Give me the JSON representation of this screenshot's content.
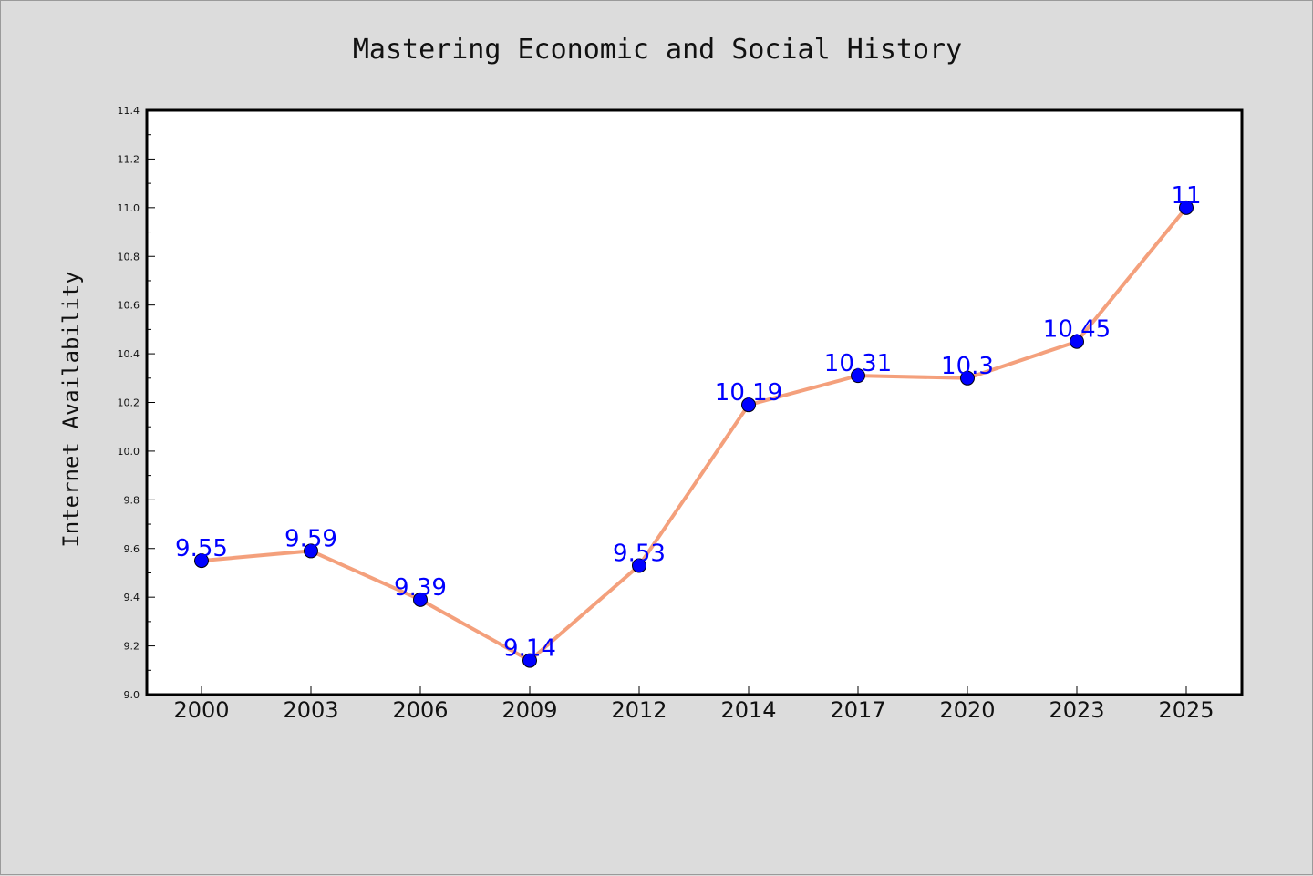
{
  "chart_data": {
    "type": "line",
    "title": "Mastering Economic and Social History",
    "xlabel": "",
    "ylabel": "Internet Availability",
    "categories": [
      "2000",
      "2003",
      "2006",
      "2009",
      "2012",
      "2014",
      "2017",
      "2020",
      "2023",
      "2025"
    ],
    "series": [
      {
        "values": [
          9.55,
          9.59,
          9.39,
          9.14,
          9.53,
          10.19,
          10.31,
          10.3,
          10.45,
          11
        ],
        "labels": [
          "9.55",
          "9.59",
          "9.39",
          "9.14",
          "9.53",
          "10.19",
          "10.31",
          "10.3",
          "10.45",
          "11"
        ],
        "line_color": "#f4a07c",
        "marker_color": "#0000ff",
        "label_color": "#0000ff"
      }
    ],
    "ylim": [
      9.0,
      11.4
    ],
    "yticks": [
      "9.0",
      "9.2",
      "9.4",
      "9.6",
      "9.8",
      "10.0",
      "10.2",
      "10.4",
      "10.6",
      "10.8",
      "11.0",
      "11.2",
      "11.4"
    ],
    "grid": false,
    "legend": "none",
    "colors": {
      "background": "#dcdcdc",
      "plot_background": "#ffffff",
      "axes": "#000000"
    }
  }
}
